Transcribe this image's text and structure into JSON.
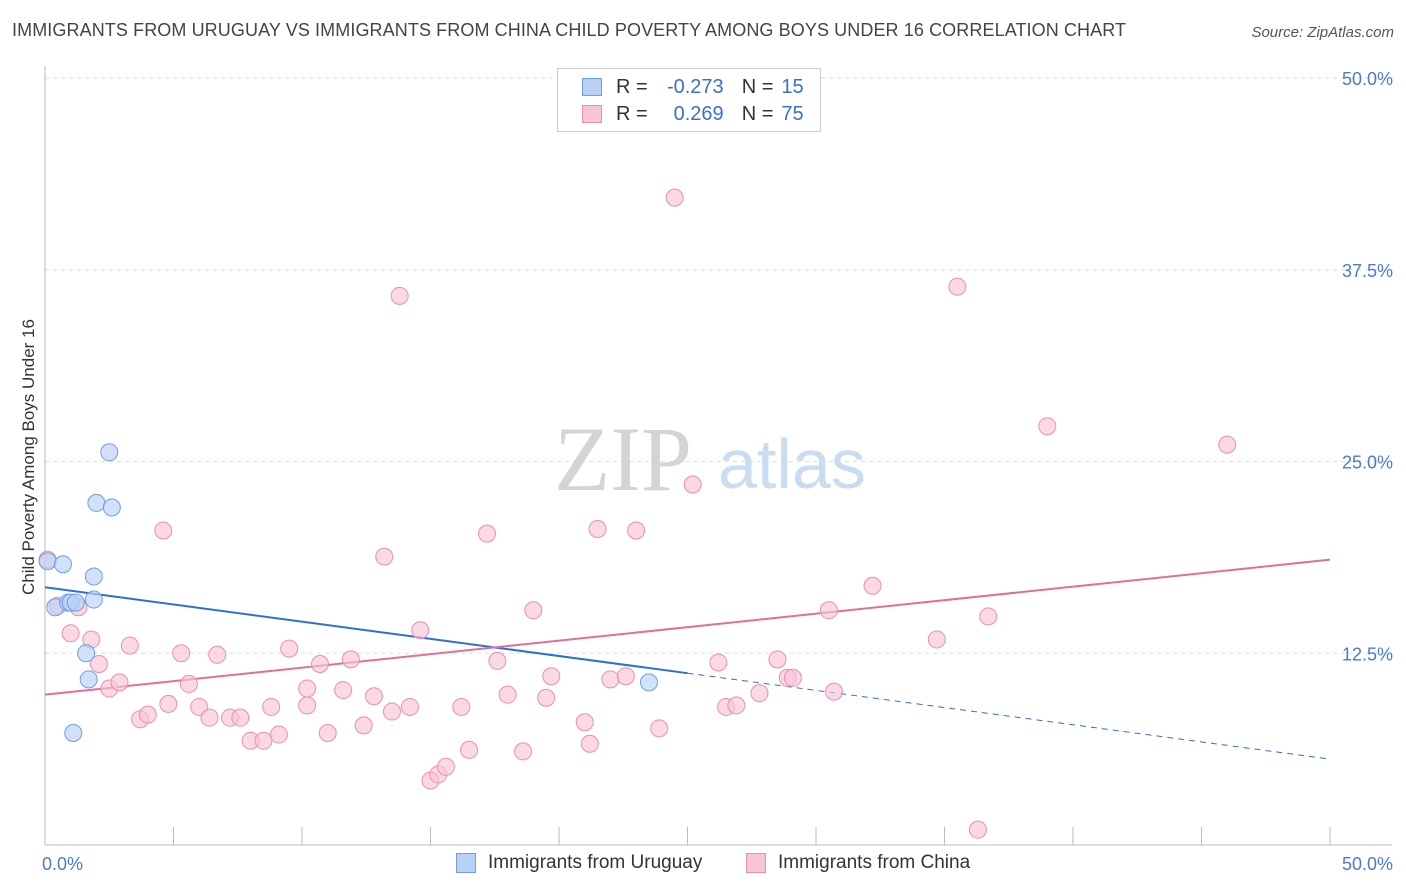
{
  "title": "IMMIGRANTS FROM URUGUAY VS IMMIGRANTS FROM CHINA CHILD POVERTY AMONG BOYS UNDER 16 CORRELATION CHART",
  "source": "Source: ZipAtlas.com",
  "watermark": {
    "zip": "ZIP",
    "atlas": "atlas"
  },
  "legend": {
    "r_label": "R =",
    "n_label": "N =",
    "uruguay": {
      "r": "-0.273",
      "n": "15"
    },
    "china": {
      "r": "0.269",
      "n": "75"
    }
  },
  "colors": {
    "uruguay_fill": "#b9d1f5",
    "uruguay_stroke": "#6f9ee6",
    "uruguay_line": "#2f6fd1",
    "china_fill": "#f8c5d5",
    "china_stroke": "#ea8fae",
    "china_line": "#e0709a",
    "tick_text": "#4a7bd0",
    "grid": "#dddddd"
  },
  "chart_data": {
    "type": "scatter",
    "title": "IMMIGRANTS FROM URUGUAY VS IMMIGRANTS FROM CHINA CHILD POVERTY AMONG BOYS UNDER 16 CORRELATION CHART",
    "xlabel": "",
    "ylabel": "Child Poverty Among Boys Under 16",
    "xlim": [
      0,
      50
    ],
    "ylim": [
      0,
      50
    ],
    "x_tick_labels": [
      "0.0%",
      "50.0%"
    ],
    "y_ticks": [
      12.5,
      25.0,
      37.5,
      50.0
    ],
    "y_tick_labels": [
      "12.5%",
      "25.0%",
      "37.5%",
      "50.0%"
    ],
    "grid": true,
    "legend_position": "top-center",
    "series": [
      {
        "name": "Immigrants from Uruguay",
        "points": [
          [
            0.1,
            18.5
          ],
          [
            0.4,
            15.5
          ],
          [
            0.7,
            18.3
          ],
          [
            0.9,
            15.8
          ],
          [
            1.0,
            15.8
          ],
          [
            1.2,
            15.8
          ],
          [
            1.6,
            12.5
          ],
          [
            1.7,
            10.8
          ],
          [
            1.9,
            17.5
          ],
          [
            1.9,
            16.0
          ],
          [
            2.0,
            22.3
          ],
          [
            2.5,
            25.6
          ],
          [
            2.6,
            22.0
          ],
          [
            1.1,
            7.3
          ],
          [
            23.5,
            10.6
          ]
        ],
        "trend": {
          "x": [
            0,
            50
          ],
          "y": [
            16.8,
            5.6
          ],
          "solid_until": 25
        }
      },
      {
        "name": "Immigrants from China",
        "points": [
          [
            0.1,
            18.6
          ],
          [
            0.5,
            15.6
          ],
          [
            1.0,
            13.8
          ],
          [
            1.3,
            15.5
          ],
          [
            1.8,
            13.4
          ],
          [
            2.1,
            11.8
          ],
          [
            2.5,
            10.2
          ],
          [
            2.9,
            10.6
          ],
          [
            3.3,
            13.0
          ],
          [
            3.7,
            8.2
          ],
          [
            4.0,
            8.5
          ],
          [
            4.6,
            20.5
          ],
          [
            4.8,
            9.2
          ],
          [
            5.3,
            12.5
          ],
          [
            5.6,
            10.5
          ],
          [
            6.0,
            9.0
          ],
          [
            6.4,
            8.3
          ],
          [
            6.7,
            12.4
          ],
          [
            7.2,
            8.3
          ],
          [
            7.6,
            8.3
          ],
          [
            8.0,
            6.8
          ],
          [
            8.5,
            6.8
          ],
          [
            8.8,
            9.0
          ],
          [
            9.1,
            7.2
          ],
          [
            9.5,
            12.8
          ],
          [
            10.2,
            9.1
          ],
          [
            10.7,
            11.8
          ],
          [
            10.2,
            10.2
          ],
          [
            11.0,
            7.3
          ],
          [
            11.6,
            10.1
          ],
          [
            11.9,
            12.1
          ],
          [
            12.4,
            7.8
          ],
          [
            12.8,
            9.7
          ],
          [
            13.2,
            18.8
          ],
          [
            13.5,
            8.7
          ],
          [
            13.8,
            35.8
          ],
          [
            14.2,
            9.0
          ],
          [
            14.6,
            14.0
          ],
          [
            15.0,
            4.2
          ],
          [
            15.3,
            4.6
          ],
          [
            15.6,
            5.1
          ],
          [
            16.2,
            9.0
          ],
          [
            16.5,
            6.2
          ],
          [
            17.2,
            20.3
          ],
          [
            17.6,
            12.0
          ],
          [
            18.0,
            9.8
          ],
          [
            18.6,
            6.1
          ],
          [
            19.0,
            15.3
          ],
          [
            19.5,
            9.6
          ],
          [
            19.7,
            11.0
          ],
          [
            21.0,
            8.0
          ],
          [
            21.2,
            6.6
          ],
          [
            21.5,
            20.6
          ],
          [
            22.0,
            10.8
          ],
          [
            22.6,
            11.0
          ],
          [
            23.0,
            20.5
          ],
          [
            23.9,
            7.6
          ],
          [
            24.5,
            42.2
          ],
          [
            25.2,
            23.5
          ],
          [
            26.2,
            11.9
          ],
          [
            26.5,
            9.0
          ],
          [
            26.9,
            9.1
          ],
          [
            27.8,
            9.9
          ],
          [
            28.5,
            12.1
          ],
          [
            28.9,
            10.9
          ],
          [
            29.1,
            10.9
          ],
          [
            30.5,
            15.3
          ],
          [
            30.7,
            10.0
          ],
          [
            32.2,
            16.9
          ],
          [
            34.7,
            13.4
          ],
          [
            35.5,
            36.4
          ],
          [
            36.3,
            1.0
          ],
          [
            36.7,
            14.9
          ],
          [
            39.0,
            27.3
          ],
          [
            46.0,
            26.1
          ]
        ],
        "trend": {
          "x": [
            0,
            50
          ],
          "y": [
            9.8,
            18.6
          ]
        }
      }
    ]
  }
}
